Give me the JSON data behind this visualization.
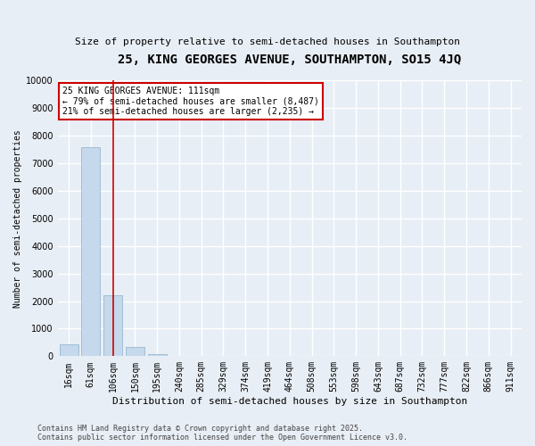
{
  "title": "25, KING GEORGES AVENUE, SOUTHAMPTON, SO15 4JQ",
  "subtitle": "Size of property relative to semi-detached houses in Southampton",
  "xlabel": "Distribution of semi-detached houses by size in Southampton",
  "ylabel": "Number of semi-detached properties",
  "categories": [
    "16sqm",
    "61sqm",
    "106sqm",
    "150sqm",
    "195sqm",
    "240sqm",
    "285sqm",
    "329sqm",
    "374sqm",
    "419sqm",
    "464sqm",
    "508sqm",
    "553sqm",
    "598sqm",
    "643sqm",
    "687sqm",
    "732sqm",
    "777sqm",
    "822sqm",
    "866sqm",
    "911sqm"
  ],
  "values": [
    430,
    7580,
    2200,
    340,
    80,
    15,
    5,
    2,
    1,
    1,
    1,
    1,
    1,
    1,
    1,
    1,
    1,
    1,
    1,
    1,
    1
  ],
  "bar_color": "#c5d8ec",
  "vline_color": "#cc0000",
  "vline_index": 2,
  "annotation_line1": "25 KING GEORGES AVENUE: 111sqm",
  "annotation_line2": "← 79% of semi-detached houses are smaller (8,487)",
  "annotation_line3": "21% of semi-detached houses are larger (2,235) →",
  "annotation_box_color": "#ffffff",
  "annotation_box_edge": "#cc0000",
  "ylim": [
    0,
    10000
  ],
  "yticks": [
    0,
    1000,
    2000,
    3000,
    4000,
    5000,
    6000,
    7000,
    8000,
    9000,
    10000
  ],
  "footer_line1": "Contains HM Land Registry data © Crown copyright and database right 2025.",
  "footer_line2": "Contains public sector information licensed under the Open Government Licence v3.0.",
  "background_color": "#e8eef5",
  "grid_color": "#ffffff",
  "title_fontsize": 10,
  "subtitle_fontsize": 8,
  "axis_fontsize": 7,
  "xlabel_fontsize": 8,
  "ylabel_fontsize": 7,
  "annotation_fontsize": 7,
  "footer_fontsize": 6
}
